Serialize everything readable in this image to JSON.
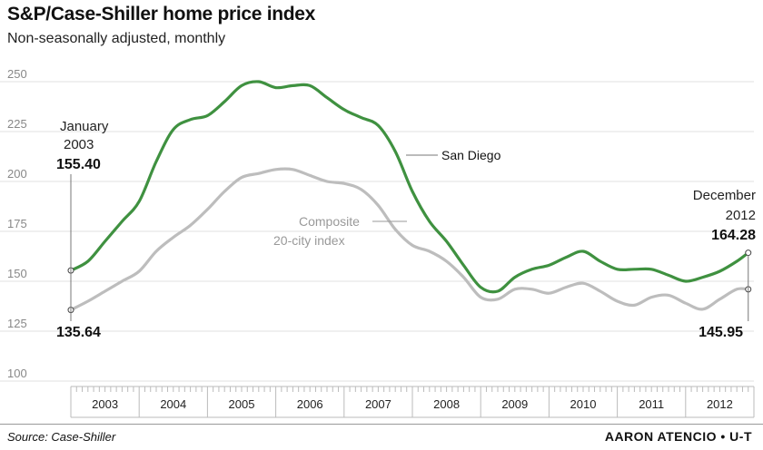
{
  "title": "S&P/Case-Shiller home price index",
  "subtitle": "Non-seasonally adjusted, monthly",
  "source": "Source: Case-Shiller",
  "credit": "AARON ATENCIO • U-T",
  "colors": {
    "san_diego": "#3f9140",
    "composite": "#bdbdbd",
    "grid": "#e0e0e0",
    "axis": "#bbbbbb"
  },
  "annotations": {
    "start_label_line1": "January",
    "start_label_line2": "2003",
    "start_sd_value": "155.40",
    "start_comp_value": "135.64",
    "end_label_line1": "December",
    "end_label_line2": "2012",
    "end_sd_value": "164.28",
    "end_comp_value": "145.95"
  },
  "chart_data": {
    "type": "line",
    "title": "S&P/Case-Shiller home price index",
    "subtitle": "Non-seasonally adjusted, monthly",
    "ylim": [
      100,
      250
    ],
    "yticks": [
      "100",
      "125",
      "150",
      "175",
      "200",
      "225",
      "250"
    ],
    "xlim": [
      2003.0,
      2013.0
    ],
    "xticks": [
      "2003",
      "2004",
      "2005",
      "2006",
      "2007",
      "2008",
      "2009",
      "2010",
      "2011",
      "2012"
    ],
    "grid": true,
    "series": [
      {
        "name": "San Diego",
        "x": [
          2003.0,
          2003.25,
          2003.5,
          2003.75,
          2004.0,
          2004.25,
          2004.5,
          2004.75,
          2005.0,
          2005.25,
          2005.5,
          2005.75,
          2006.0,
          2006.25,
          2006.5,
          2006.75,
          2007.0,
          2007.25,
          2007.5,
          2007.75,
          2008.0,
          2008.25,
          2008.5,
          2008.75,
          2009.0,
          2009.25,
          2009.5,
          2009.75,
          2010.0,
          2010.25,
          2010.5,
          2010.75,
          2011.0,
          2011.25,
          2011.5,
          2011.75,
          2012.0,
          2012.25,
          2012.5,
          2012.75,
          2012.917
        ],
        "y": [
          155.4,
          160,
          170,
          180,
          190,
          210,
          226,
          231,
          233,
          240,
          248,
          250,
          247,
          248,
          248,
          242,
          236,
          232,
          228,
          215,
          195,
          180,
          170,
          158,
          147,
          145,
          152,
          156,
          158,
          162,
          165,
          160,
          156,
          156,
          156,
          153,
          150,
          152,
          155,
          160,
          164.28
        ]
      },
      {
        "name": "Composite 20-city index",
        "x": [
          2003.0,
          2003.25,
          2003.5,
          2003.75,
          2004.0,
          2004.25,
          2004.5,
          2004.75,
          2005.0,
          2005.25,
          2005.5,
          2005.75,
          2006.0,
          2006.25,
          2006.5,
          2006.75,
          2007.0,
          2007.25,
          2007.5,
          2007.75,
          2008.0,
          2008.25,
          2008.5,
          2008.75,
          2009.0,
          2009.25,
          2009.5,
          2009.75,
          2010.0,
          2010.25,
          2010.5,
          2010.75,
          2011.0,
          2011.25,
          2011.5,
          2011.75,
          2012.0,
          2012.25,
          2012.5,
          2012.75,
          2012.917
        ],
        "y": [
          135.64,
          140,
          145,
          150,
          155,
          165,
          172,
          178,
          186,
          195,
          202,
          204,
          206,
          206,
          203,
          200,
          199,
          196,
          188,
          176,
          168,
          165,
          160,
          152,
          142,
          141,
          146,
          146,
          144,
          147,
          149,
          145,
          140,
          138,
          142,
          143,
          139,
          136,
          141,
          146,
          145.95
        ]
      }
    ]
  }
}
